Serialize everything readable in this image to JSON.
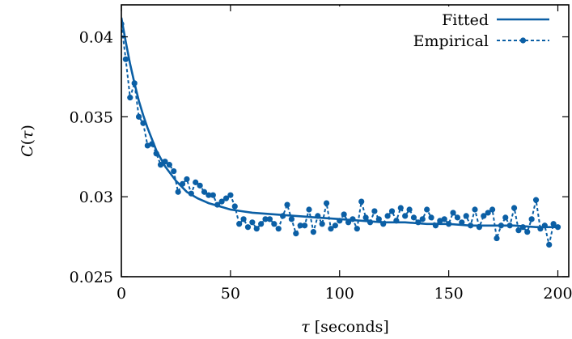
{
  "chart_data": {
    "type": "line",
    "title": "",
    "xlabel": {
      "symbol": "τ",
      "unit": "[seconds]"
    },
    "ylabel": {
      "func": "C",
      "arg": "τ"
    },
    "xlim": [
      0,
      205
    ],
    "ylim": [
      0.025,
      0.042
    ],
    "xticks": [
      0,
      50,
      100,
      150,
      200
    ],
    "xtick_labels": [
      "0",
      "50",
      "100",
      "150",
      "200"
    ],
    "yticks": [
      0.025,
      0.03,
      0.035,
      0.04
    ],
    "ytick_labels": [
      "0.025",
      "0.03",
      "0.035",
      "0.04"
    ],
    "grid": false,
    "legend_position": "top-right",
    "colors": {
      "fitted": "#0b5fa5",
      "empirical": "#0b5fa5"
    },
    "series": [
      {
        "name": "Fitted",
        "style": "solid",
        "x": [
          0,
          2,
          4,
          6,
          8,
          10,
          12,
          14,
          16,
          18,
          20,
          25,
          30,
          35,
          40,
          45,
          50,
          55,
          60,
          70,
          80,
          90,
          100,
          110,
          120,
          130,
          140,
          150,
          160,
          170,
          180,
          190,
          200
        ],
        "y": [
          0.0412,
          0.0397,
          0.0383,
          0.0371,
          0.036,
          0.0351,
          0.0343,
          0.0336,
          0.0329,
          0.0324,
          0.0319,
          0.031,
          0.0303,
          0.0299,
          0.0296,
          0.0294,
          0.0292,
          0.0291,
          0.029,
          0.0289,
          0.0288,
          0.0287,
          0.0286,
          0.0285,
          0.0284,
          0.0284,
          0.0283,
          0.0283,
          0.0282,
          0.0282,
          0.0282,
          0.0281,
          0.0281
        ]
      },
      {
        "name": "Empirical",
        "style": "dashed-markers",
        "x": [
          0,
          2,
          4,
          6,
          8,
          10,
          12,
          14,
          16,
          18,
          20,
          22,
          24,
          26,
          28,
          30,
          32,
          34,
          36,
          38,
          40,
          42,
          44,
          46,
          48,
          50,
          52,
          54,
          56,
          58,
          60,
          62,
          64,
          66,
          68,
          70,
          72,
          74,
          76,
          78,
          80,
          82,
          84,
          86,
          88,
          90,
          92,
          94,
          96,
          98,
          100,
          102,
          104,
          106,
          108,
          110,
          112,
          114,
          116,
          118,
          120,
          122,
          124,
          126,
          128,
          130,
          132,
          134,
          136,
          138,
          140,
          142,
          144,
          146,
          148,
          150,
          152,
          154,
          156,
          158,
          160,
          162,
          164,
          166,
          168,
          170,
          172,
          174,
          176,
          178,
          180,
          182,
          184,
          186,
          188,
          190,
          192,
          194,
          196,
          198,
          200
        ],
        "y": [
          0.0408,
          0.0386,
          0.0362,
          0.0371,
          0.035,
          0.0346,
          0.0332,
          0.0333,
          0.0327,
          0.032,
          0.0322,
          0.032,
          0.0316,
          0.0303,
          0.0308,
          0.0311,
          0.0302,
          0.0309,
          0.0307,
          0.0303,
          0.0301,
          0.0301,
          0.0295,
          0.0297,
          0.0299,
          0.0301,
          0.0294,
          0.0283,
          0.0286,
          0.0281,
          0.0284,
          0.028,
          0.0283,
          0.0286,
          0.0286,
          0.0283,
          0.028,
          0.0288,
          0.0295,
          0.0286,
          0.0277,
          0.0282,
          0.0282,
          0.0292,
          0.0278,
          0.0288,
          0.0283,
          0.0296,
          0.028,
          0.0282,
          0.0285,
          0.0289,
          0.0284,
          0.0286,
          0.028,
          0.0297,
          0.0287,
          0.0284,
          0.0291,
          0.0286,
          0.0283,
          0.0288,
          0.0291,
          0.0285,
          0.0293,
          0.0288,
          0.0292,
          0.0287,
          0.0284,
          0.0286,
          0.0292,
          0.0287,
          0.0282,
          0.0285,
          0.0286,
          0.0283,
          0.029,
          0.0287,
          0.0284,
          0.0288,
          0.0282,
          0.0292,
          0.0281,
          0.0288,
          0.029,
          0.0292,
          0.0274,
          0.0282,
          0.0287,
          0.0282,
          0.0293,
          0.0279,
          0.0281,
          0.0278,
          0.0286,
          0.0298,
          0.028,
          0.0282,
          0.027,
          0.0283,
          0.0281
        ]
      }
    ]
  }
}
